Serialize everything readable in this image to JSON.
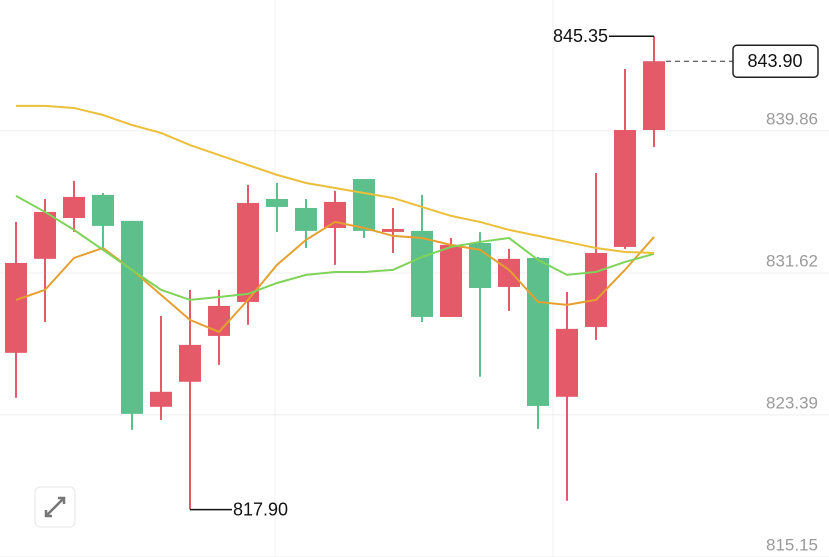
{
  "chart_data": {
    "type": "candlestick",
    "ylim": [
      815.15,
      847.45
    ],
    "yticks": [
      815.15,
      823.39,
      831.62,
      839.86
    ],
    "grid": true,
    "up_color": "#e45a68",
    "down_color": "#5cbf8c",
    "open": [
      826.99,
      832.44,
      834.81,
      836.15,
      834.64,
      823.86,
      825.31,
      827.97,
      829.94,
      835.91,
      835.39,
      834.23,
      837.07,
      834.0,
      834.06,
      829.07,
      833.36,
      830.81,
      832.49,
      824.44,
      828.49,
      833.13,
      839.91
    ],
    "high": [
      834.58,
      835.91,
      836.96,
      836.26,
      834.64,
      829.13,
      830.64,
      830.64,
      836.73,
      836.84,
      835.91,
      836.38,
      837.07,
      835.39,
      836.15,
      833.65,
      833.99,
      833.02,
      832.55,
      830.52,
      837.42,
      843.45,
      845.35
    ],
    "low": [
      824.38,
      828.78,
      834.0,
      832.96,
      822.52,
      823.1,
      817.9,
      826.29,
      828.61,
      834.0,
      833.07,
      832.09,
      833.65,
      832.78,
      828.78,
      829.07,
      825.6,
      829.42,
      822.58,
      818.41,
      827.74,
      833.02,
      838.93
    ],
    "close": [
      832.2,
      835.16,
      836.03,
      834.35,
      823.45,
      824.73,
      827.45,
      829.71,
      835.68,
      835.45,
      834.06,
      835.74,
      834.06,
      834.17,
      829.07,
      833.25,
      830.75,
      832.44,
      823.91,
      828.38,
      832.78,
      839.91,
      843.9
    ],
    "series": [
      {
        "color": "#e5a030",
        "values": [
          830.06,
          830.64,
          832.49,
          833.07,
          831.8,
          830.35,
          828.9,
          828.2,
          830.06,
          832.09,
          833.54,
          834.58,
          834.23,
          833.77,
          833.65,
          833.25,
          832.96,
          831.8,
          829.94,
          829.77,
          830.06,
          831.8,
          833.71
        ]
      },
      {
        "color": "#7fd35a",
        "values": [
          836.09,
          835.16,
          834.12,
          832.96,
          831.8,
          830.64,
          830.06,
          830.23,
          830.41,
          831.04,
          831.51,
          831.68,
          831.68,
          831.8,
          832.55,
          833.13,
          833.42,
          833.65,
          832.38,
          831.51,
          831.68,
          832.26,
          832.73
        ]
      },
      {
        "color": "#ecbf3a",
        "values": [
          841.31,
          841.31,
          841.19,
          840.78,
          840.2,
          839.74,
          839.04,
          838.46,
          837.88,
          837.31,
          836.84,
          836.55,
          836.26,
          835.97,
          835.45,
          834.93,
          834.58,
          834.12,
          833.77,
          833.42,
          833.07,
          832.84,
          832.78
        ]
      }
    ],
    "annotations": {
      "high": "845.35",
      "low": "817.90",
      "last": "843.90"
    }
  }
}
